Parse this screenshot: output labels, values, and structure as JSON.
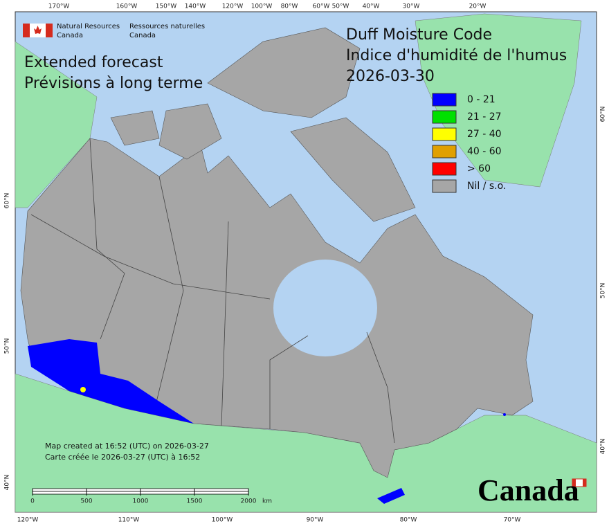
{
  "logo": {
    "english": [
      "Natural Resources",
      "Canada"
    ],
    "french": [
      "Ressources naturelles",
      "Canada"
    ]
  },
  "subtitle": [
    "Extended forecast",
    "Prévisions à long terme"
  ],
  "title": [
    "Duff Moisture Code",
    "Indice d'humidité de l'humus",
    "2026-03-30"
  ],
  "legend": [
    {
      "label": "0 - 21",
      "color": "#0000ff"
    },
    {
      "label": "21 - 27",
      "color": "#00e000"
    },
    {
      "label": "27 - 40",
      "color": "#ffff00"
    },
    {
      "label": "40 - 60",
      "color": "#e0a000"
    },
    {
      "label": "> 60",
      "color": "#ff0000"
    },
    {
      "label": "Nil / s.o.",
      "color": "#a6a6a6"
    }
  ],
  "graticule": {
    "top": [
      "170°W",
      "160°W",
      "150°W",
      "140°W",
      "120°W",
      "100°W",
      "80°W",
      "60°W",
      "50°W",
      "40°W",
      "30°W",
      "20°W"
    ],
    "bottom": [
      "120°W",
      "110°W",
      "100°W",
      "90°W",
      "80°W",
      "70°W"
    ],
    "left": [
      "60°N",
      "50°N",
      "40°N"
    ],
    "right": [
      "60°N",
      "50°N",
      "40°N"
    ]
  },
  "notes": [
    "Map created at 16:52 (UTC) on 2026-03-27",
    "Carte créée le 2026-03-27 (UTC) à 16:52"
  ],
  "scale": {
    "ticks": [
      0,
      500,
      1000,
      1500,
      2000
    ],
    "unit": "km"
  },
  "wordmark": "Canada"
}
